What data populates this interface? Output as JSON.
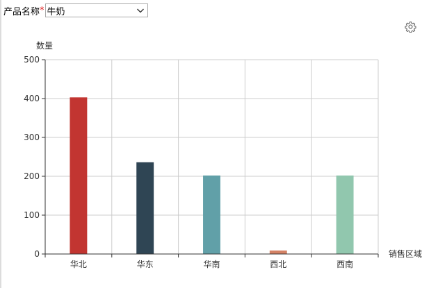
{
  "filter": {
    "label": "产品名称",
    "required_mark": "*",
    "selected": "牛奶"
  },
  "toolbar": {
    "settings_icon": "gear-icon"
  },
  "chart_data": {
    "type": "bar",
    "categories": [
      "华北",
      "华东",
      "华南",
      "西北",
      "西南"
    ],
    "values": [
      403,
      236,
      202,
      9,
      202
    ],
    "colors": [
      "#c23531",
      "#2f4554",
      "#61a0a8",
      "#d48265",
      "#91c7ae"
    ],
    "ylabel": "数量",
    "xlabel": "销售区域",
    "ylim": [
      0,
      500
    ],
    "yticks": [
      0,
      100,
      200,
      300,
      400,
      500
    ],
    "grid": true
  }
}
